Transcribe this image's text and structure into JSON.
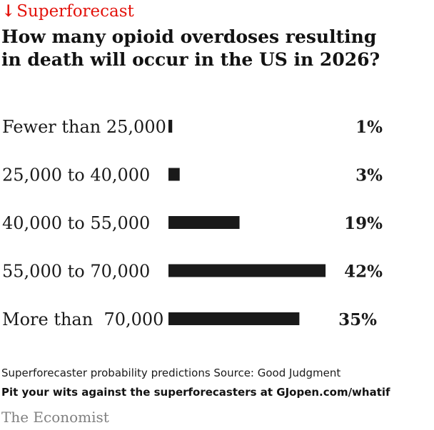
{
  "kicker": {
    "icon": "arrow-down-icon",
    "glyph": "↓",
    "label": "Superforecast",
    "color": "#e3120b"
  },
  "title": "How many opioid overdoses resulting in death will occur in the US in 2026?",
  "chart_data": {
    "type": "bar",
    "orientation": "horizontal",
    "categories": [
      "Fewer than 25,000",
      "25,000 to 40,000",
      "40,000 to 55,000",
      "55,000 to 70,000",
      "More than  70,000"
    ],
    "values": [
      1,
      3,
      19,
      42,
      35
    ],
    "value_labels": [
      "1%",
      "3%",
      "19%",
      "42%",
      "35%"
    ],
    "unit": "%",
    "bar_color": "#1a1a1a",
    "grid": false,
    "legend": "none"
  },
  "footer": {
    "source": "Superforecaster probability predictions Source: Good Judgment",
    "cta": "Pit your wits against the superforecasters at GJopen.com/whatif",
    "brand": "The Economist"
  }
}
